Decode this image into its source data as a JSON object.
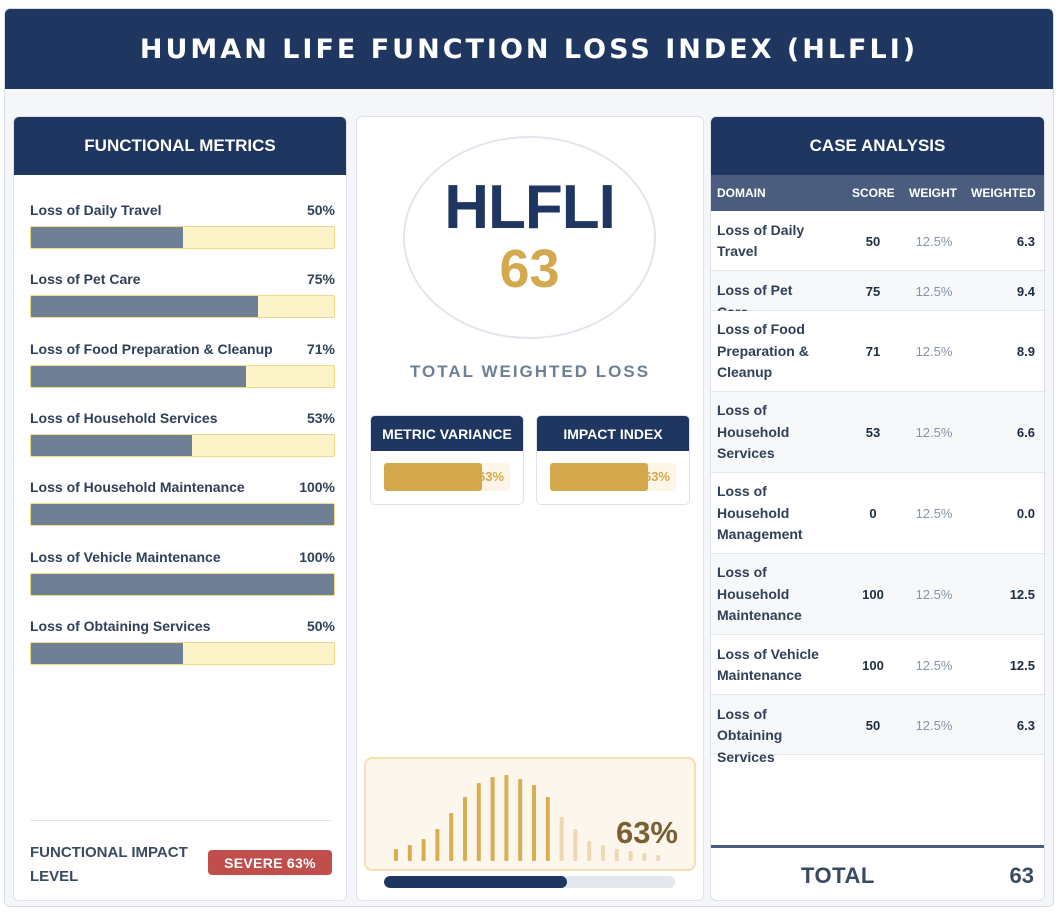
{
  "title": "HUMAN LIFE FUNCTION LOSS INDEX (HLFLI)",
  "left": {
    "heading": "FUNCTIONAL METRICS",
    "metrics": [
      {
        "label": "Loss of Daily Travel",
        "pct_text": "50%",
        "value": 50
      },
      {
        "label": "Loss of Pet Care",
        "pct_text": "75%",
        "value": 75
      },
      {
        "label": "Loss of Food Preparation & Cleanup",
        "pct_text": "71%",
        "value": 71
      },
      {
        "label": "Loss of Household Services",
        "pct_text": "53%",
        "value": 53
      },
      {
        "label": "Loss of Household Maintenance",
        "pct_text": "100%",
        "value": 100
      },
      {
        "label": "Loss of Vehicle Maintenance",
        "pct_text": "100%",
        "value": 100
      },
      {
        "label": "Loss of Obtaining Services",
        "pct_text": "50%",
        "value": 50
      }
    ],
    "impact_label": "FUNCTIONAL IMPACT LEVEL",
    "impact_badge": "SEVERE 63%"
  },
  "center": {
    "acronym": "HLFLI",
    "score": "63",
    "subtitle": "TOTAL WEIGHTED LOSS",
    "metric_variance": {
      "label": "METRIC VARIANCE",
      "value_text": "63%",
      "value": 63
    },
    "impact_index": {
      "label": "IMPACT INDEX",
      "value_text": "63%",
      "value": 63
    },
    "wave_value": "63%",
    "progress": 63
  },
  "right": {
    "heading": "CASE ANALYSIS",
    "columns": [
      "DOMAIN",
      "SCORE",
      "WEIGHT",
      "WEIGHTED"
    ],
    "rows": [
      {
        "domain": "Loss of Daily Travel",
        "score": "50",
        "weight": "12.5%",
        "weighted": "6.3"
      },
      {
        "domain": "Loss of Pet Care",
        "score": "75",
        "weight": "12.5%",
        "weighted": "9.4"
      },
      {
        "domain": "Loss of Food Preparation & Cleanup",
        "score": "71",
        "weight": "12.5%",
        "weighted": "8.9"
      },
      {
        "domain": "Loss of Household Services",
        "score": "53",
        "weight": "12.5%",
        "weighted": "6.6"
      },
      {
        "domain": "Loss of Household Management",
        "score": "0",
        "weight": "12.5%",
        "weighted": "0.0"
      },
      {
        "domain": "Loss of Household Maintenance",
        "score": "100",
        "weight": "12.5%",
        "weighted": "12.5"
      },
      {
        "domain": "Loss of Vehicle Maintenance",
        "score": "100",
        "weight": "12.5%",
        "weighted": "12.5"
      },
      {
        "domain": "Loss of Obtaining Services",
        "score": "50",
        "weight": "12.5%",
        "weighted": "6.3"
      }
    ],
    "total_label": "TOTAL",
    "total_value": "63"
  },
  "colors": {
    "navy": "#1e3660",
    "gold": "#d4a84c",
    "slate_fill": "#6e7f96",
    "severe_red": "#bf4e4c"
  }
}
